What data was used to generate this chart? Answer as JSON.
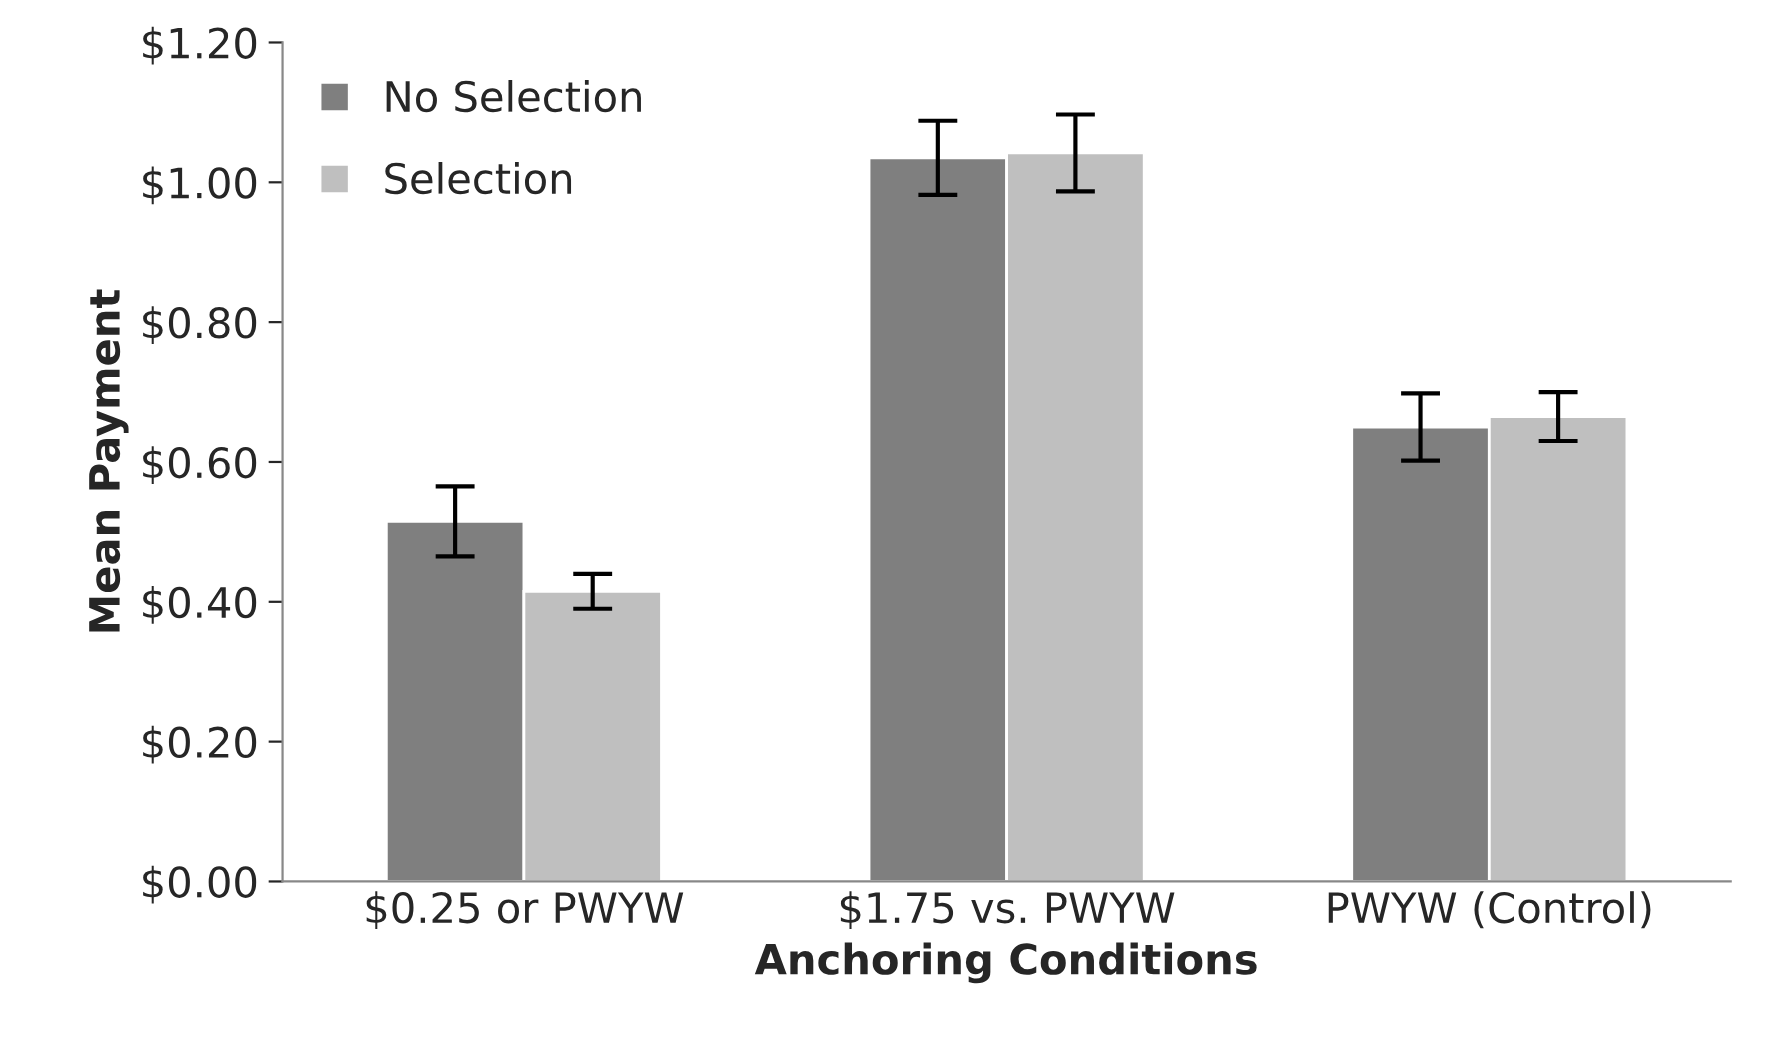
{
  "chart_data": {
    "type": "bar",
    "xlabel": "Anchoring Conditions",
    "ylabel": "Mean Payment",
    "categories": [
      "$0.25 or PWYW",
      "$1.75 vs. PWYW",
      "PWYW (Control)"
    ],
    "series": [
      {
        "name": "No Selection",
        "color": "#7f7f7f",
        "values": [
          0.515,
          1.035,
          0.65
        ],
        "errors": [
          0.05,
          0.053,
          0.048
        ]
      },
      {
        "name": "Selection",
        "color": "#bfbfbf",
        "values": [
          0.415,
          1.042,
          0.665
        ],
        "errors": [
          0.025,
          0.055,
          0.035
        ]
      }
    ],
    "ylim": [
      0,
      1.2
    ],
    "yticks": [
      {
        "value": 0,
        "label": "$0.00"
      },
      {
        "value": 0.2,
        "label": "$0.20"
      },
      {
        "value": 0.4,
        "label": "$0.40"
      },
      {
        "value": 0.6,
        "label": "$0.60"
      },
      {
        "value": 0.8,
        "label": "$0.80"
      },
      {
        "value": 1.0,
        "label": "$1.00"
      },
      {
        "value": 1.2,
        "label": "$1.20"
      }
    ],
    "grid": false,
    "legend": "top left"
  }
}
